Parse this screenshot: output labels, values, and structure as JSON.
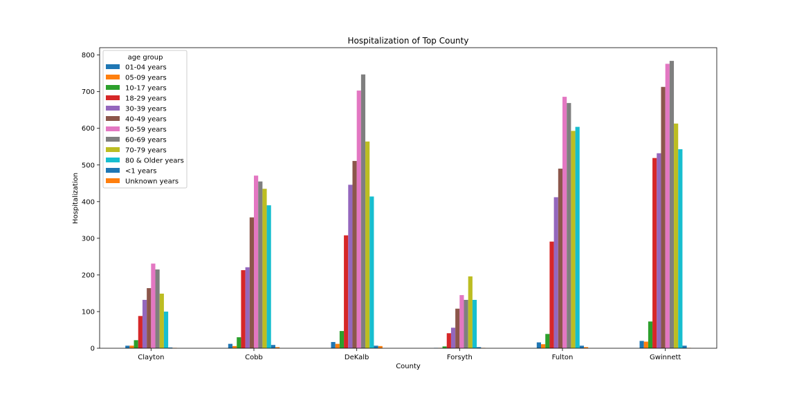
{
  "chart_data": {
    "type": "bar",
    "title": "Hospitalization of Top County",
    "xlabel": "County",
    "ylabel": "Hospitalization",
    "ylim": [
      0,
      820
    ],
    "yticks": [
      0,
      100,
      200,
      300,
      400,
      500,
      600,
      700,
      800
    ],
    "grid": false,
    "legend_title": "age group",
    "legend_position": "top-left",
    "categories": [
      "Clayton",
      "Cobb",
      "DeKalb",
      "Forsyth",
      "Fulton",
      "Gwinnett"
    ],
    "series": [
      {
        "name": "01-04 years",
        "color": "#1f77b4",
        "values": [
          7,
          12,
          17,
          1,
          16,
          20
        ]
      },
      {
        "name": "05-09 years",
        "color": "#ff7f0e",
        "values": [
          7,
          6,
          12,
          1,
          11,
          18
        ]
      },
      {
        "name": "10-17 years",
        "color": "#2ca02c",
        "values": [
          22,
          30,
          47,
          5,
          39,
          73
        ]
      },
      {
        "name": "18-29 years",
        "color": "#d62728",
        "values": [
          88,
          213,
          308,
          41,
          291,
          519
        ]
      },
      {
        "name": "30-39 years",
        "color": "#9467bd",
        "values": [
          132,
          221,
          446,
          56,
          412,
          532
        ]
      },
      {
        "name": "40-49 years",
        "color": "#8c564b",
        "values": [
          164,
          357,
          511,
          108,
          490,
          713
        ]
      },
      {
        "name": "50-59 years",
        "color": "#e377c2",
        "values": [
          231,
          471,
          703,
          145,
          686,
          776
        ]
      },
      {
        "name": "60-69 years",
        "color": "#7f7f7f",
        "values": [
          215,
          455,
          747,
          132,
          669,
          784
        ]
      },
      {
        "name": "70-79 years",
        "color": "#bcbd22",
        "values": [
          149,
          435,
          564,
          196,
          593,
          613
        ]
      },
      {
        "name": "80 & Older years",
        "color": "#17becf",
        "values": [
          100,
          390,
          414,
          132,
          604,
          543
        ]
      },
      {
        "name": "<1 years",
        "color": "#1f77b4",
        "values": [
          2,
          9,
          7,
          3,
          7,
          7
        ]
      },
      {
        "name": "Unknown years",
        "color": "#ff7f0e",
        "values": [
          1,
          3,
          6,
          1,
          3,
          1
        ]
      }
    ]
  }
}
